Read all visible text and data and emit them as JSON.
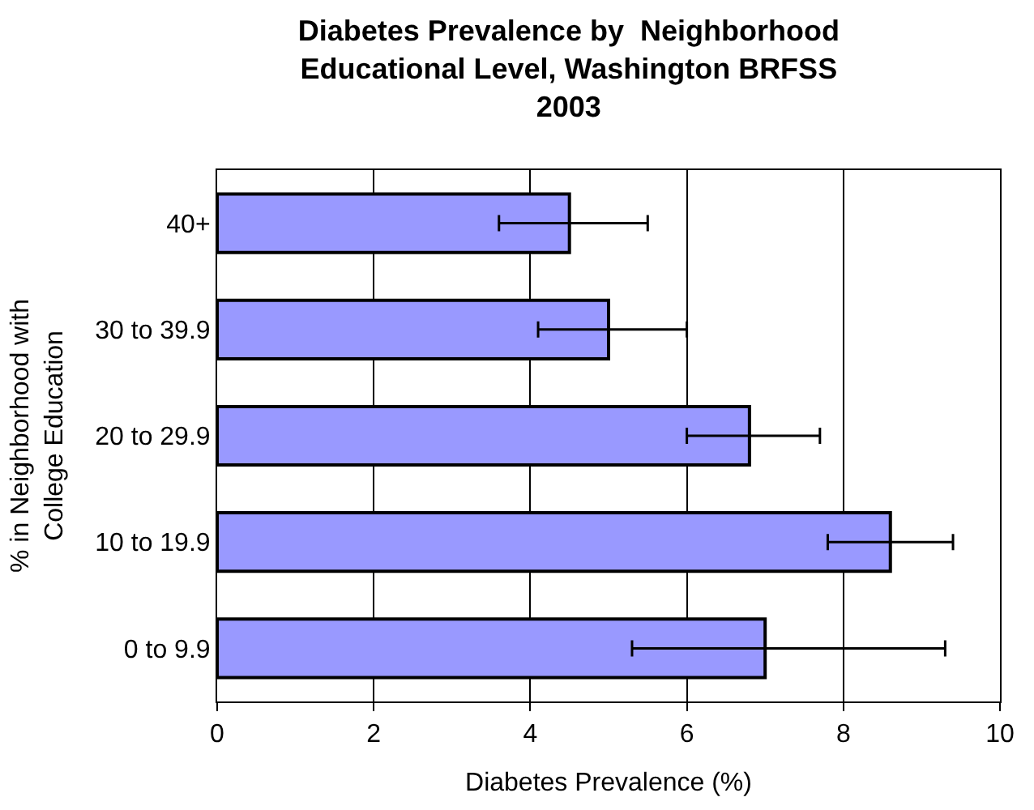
{
  "chart_data": {
    "type": "bar",
    "orientation": "horizontal",
    "title": "Diabetes Prevalence by  Neighborhood Educational Level, Washington BRFSS 2003",
    "xlabel": "Diabetes Prevalence (%)",
    "ylabel": "% in Neighborhood with College Education",
    "categories": [
      "40+",
      "30 to 39.9",
      "20 to 29.9",
      "10 to 19.9",
      "0 to 9.9"
    ],
    "values": [
      4.5,
      5.0,
      6.8,
      8.6,
      7.0
    ],
    "errors": [
      [
        3.6,
        5.5
      ],
      [
        4.1,
        6.0
      ],
      [
        6.0,
        7.7
      ],
      [
        7.8,
        9.4
      ],
      [
        5.3,
        9.3
      ]
    ],
    "color": "#9999ff",
    "xlim": [
      0,
      10
    ],
    "xticks": [
      0,
      2,
      4,
      6,
      8,
      10
    ],
    "grid": "x",
    "legend": false
  }
}
